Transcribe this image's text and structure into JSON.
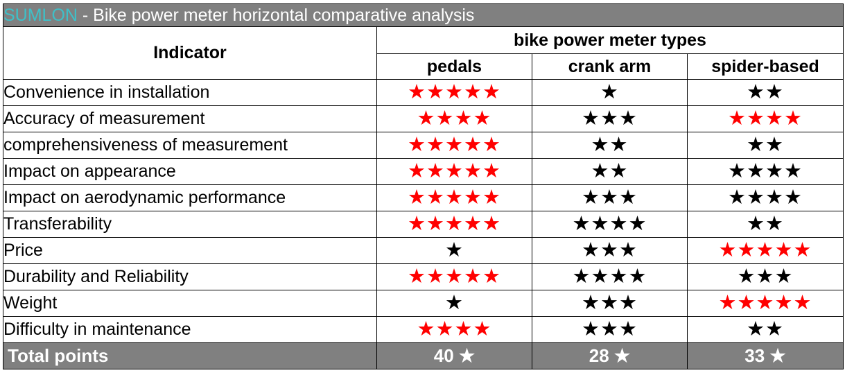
{
  "title": {
    "brand": "SUMLON",
    "rest": " - Bike power meter horizontal comparative analysis"
  },
  "header": {
    "indicator": "Indicator",
    "group": "bike power meter types",
    "types": [
      "pedals",
      "crank arm",
      "spider-based"
    ]
  },
  "star_glyph": "★",
  "colors": {
    "highlight": "#ff0000",
    "normal": "#000000",
    "brand": "#3ec0c8",
    "band": "#808080"
  },
  "rows": [
    {
      "label": "Convenience in installation",
      "ratings": [
        5,
        1,
        2
      ],
      "colors": [
        "red",
        "black",
        "black"
      ]
    },
    {
      "label": "Accuracy  of measurement",
      "ratings": [
        4,
        3,
        4
      ],
      "colors": [
        "red",
        "black",
        "red"
      ]
    },
    {
      "label": "comprehensiveness of measurement",
      "ratings": [
        5,
        2,
        2
      ],
      "colors": [
        "red",
        "black",
        "black"
      ]
    },
    {
      "label": "Impact on appearance",
      "ratings": [
        5,
        2,
        4
      ],
      "colors": [
        "red",
        "black",
        "black"
      ]
    },
    {
      "label": "Impact on aerodynamic performance",
      "ratings": [
        5,
        3,
        4
      ],
      "colors": [
        "red",
        "black",
        "black"
      ]
    },
    {
      "label": "Transferability",
      "ratings": [
        5,
        4,
        2
      ],
      "colors": [
        "red",
        "black",
        "black"
      ]
    },
    {
      "label": "Price",
      "ratings": [
        1,
        3,
        5
      ],
      "colors": [
        "black",
        "black",
        "red"
      ]
    },
    {
      "label": "Durability and Reliability",
      "ratings": [
        5,
        4,
        3
      ],
      "colors": [
        "red",
        "black",
        "black"
      ]
    },
    {
      "label": "Weight",
      "ratings": [
        1,
        3,
        5
      ],
      "colors": [
        "black",
        "black",
        "red"
      ]
    },
    {
      "label": "Difficulty in maintenance",
      "ratings": [
        4,
        3,
        2
      ],
      "colors": [
        "red",
        "black",
        "black"
      ]
    }
  ],
  "total": {
    "label": "Total points",
    "values": [
      "40 ★",
      "28 ★",
      "33 ★"
    ]
  }
}
